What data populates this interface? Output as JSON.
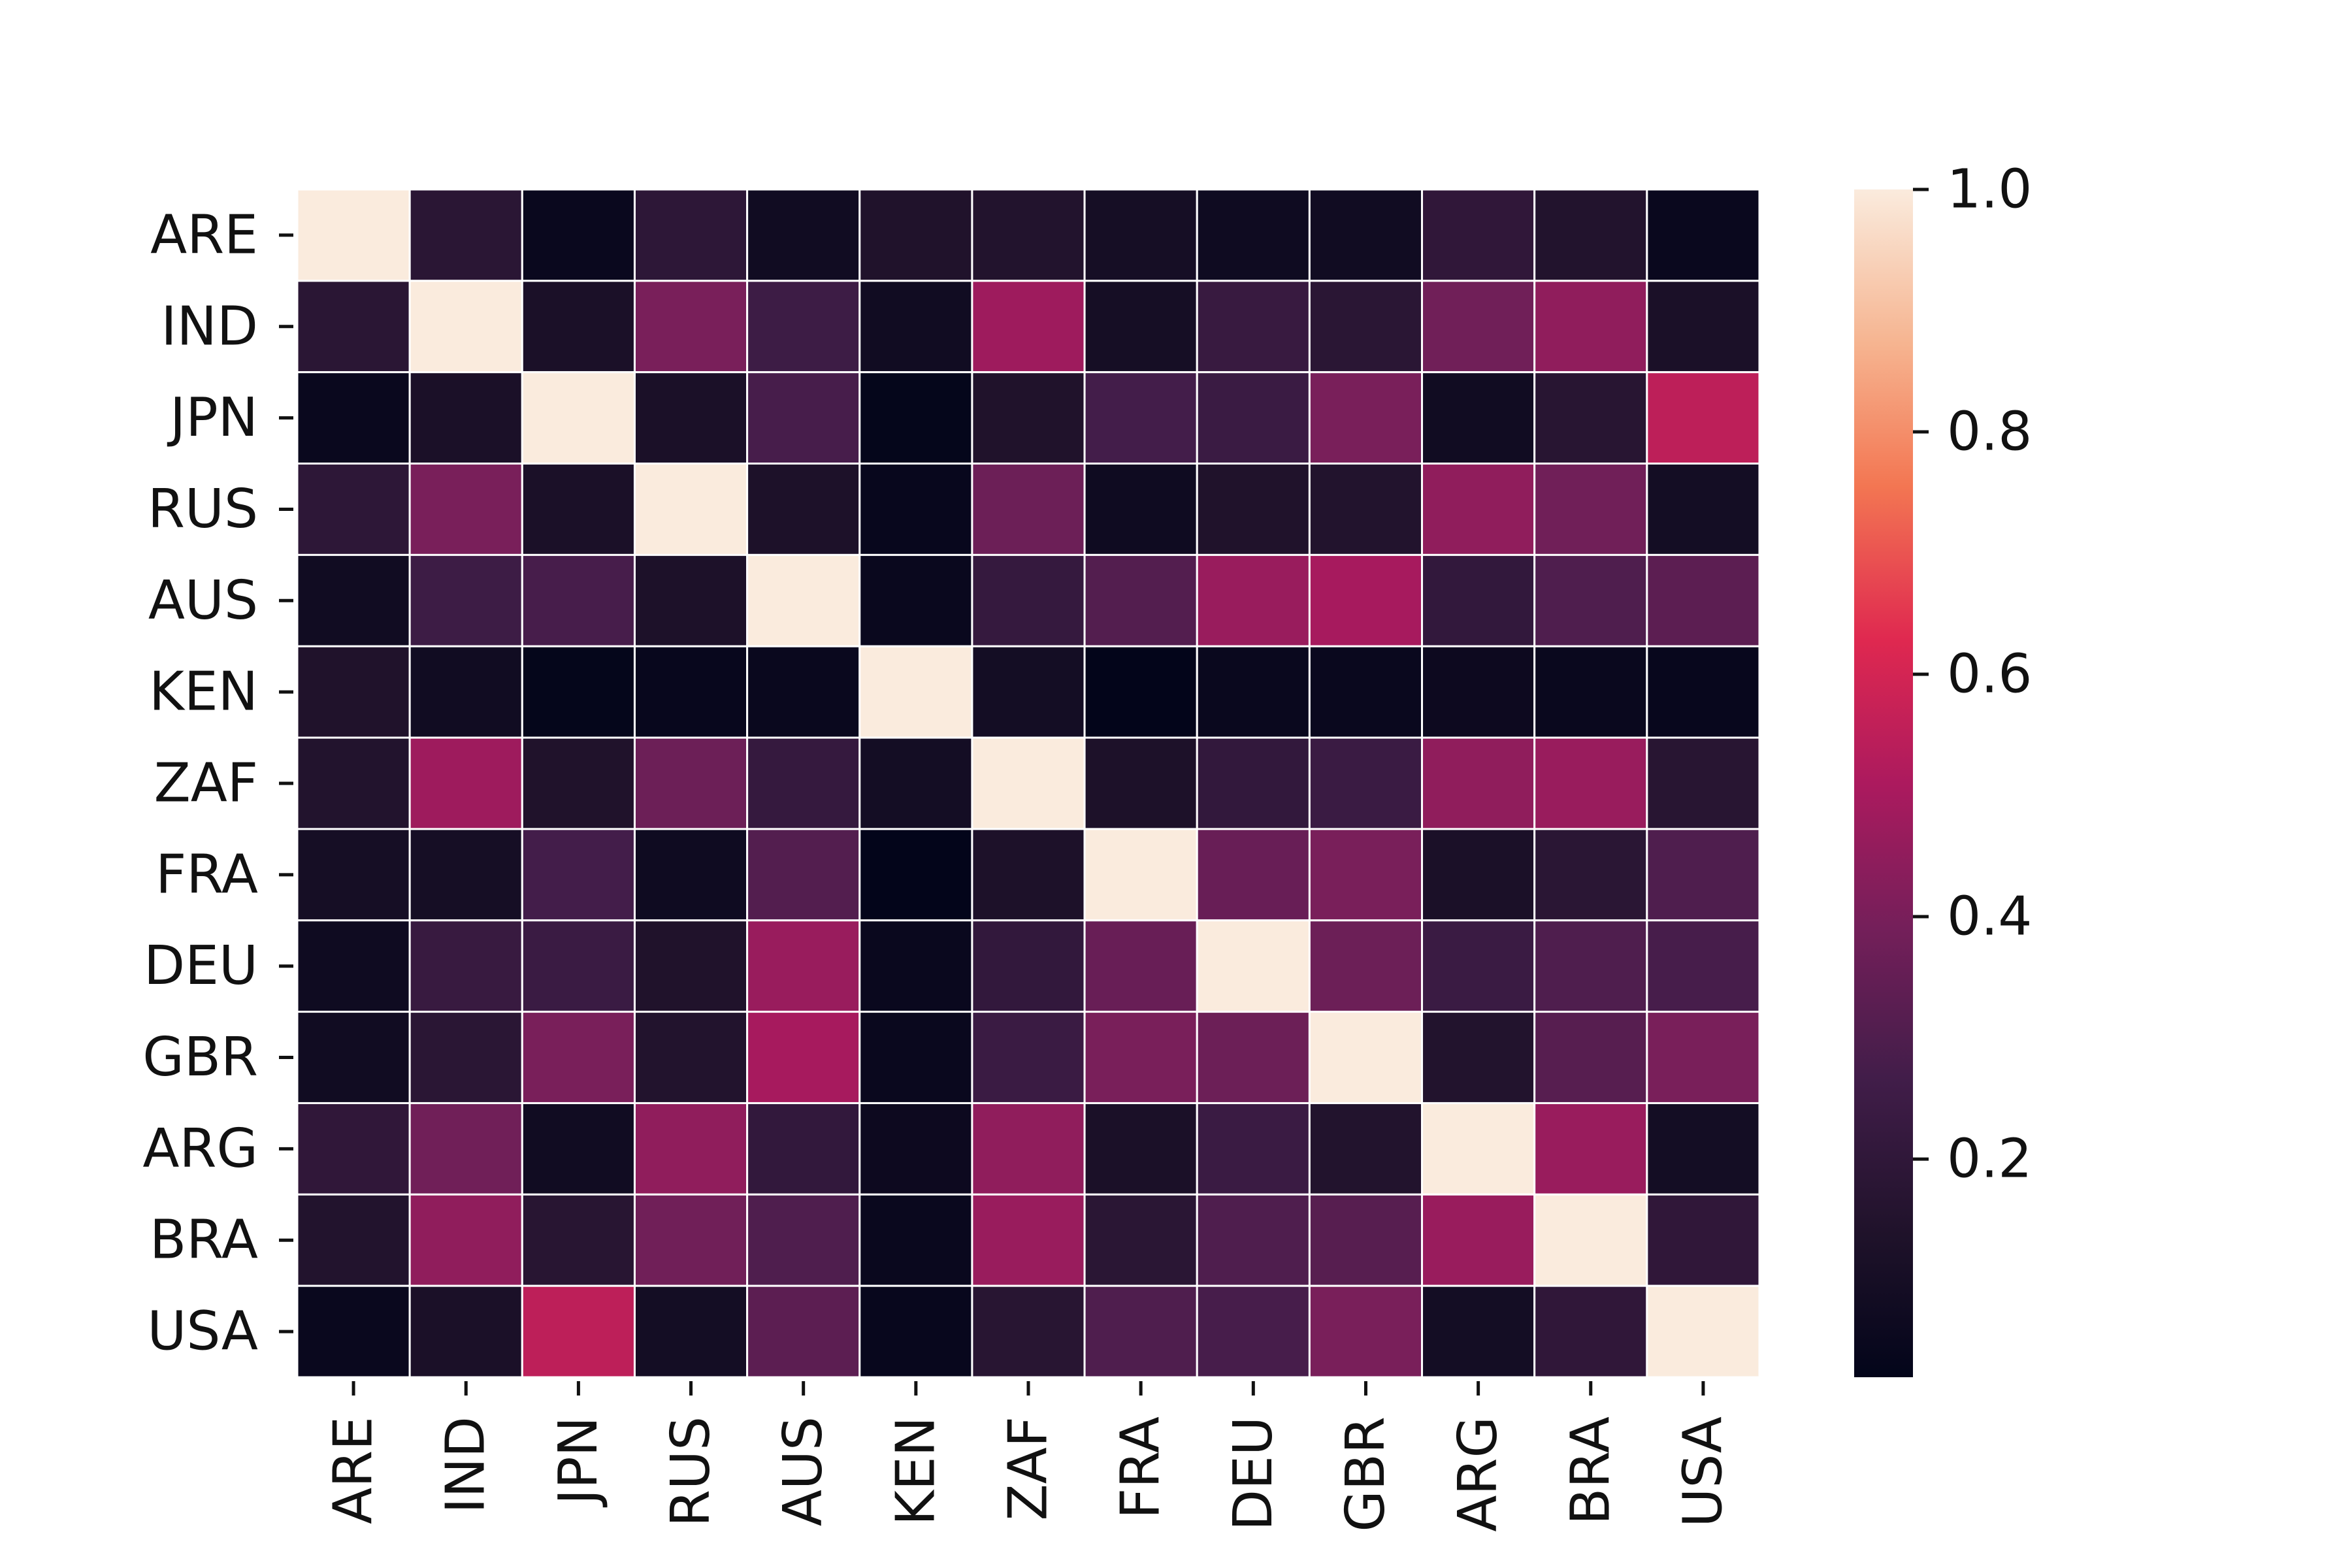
{
  "chart_data": {
    "type": "heatmap",
    "title": "",
    "xlabel": "",
    "ylabel": "",
    "rows": [
      "ARE",
      "IND",
      "JPN",
      "RUS",
      "AUS",
      "KEN",
      "ZAF",
      "FRA",
      "DEU",
      "GBR",
      "ARG",
      "BRA",
      "USA"
    ],
    "columns": [
      "ARE",
      "IND",
      "JPN",
      "RUS",
      "AUS",
      "KEN",
      "ZAF",
      "FRA",
      "DEU",
      "GBR",
      "ARG",
      "BRA",
      "USA"
    ],
    "values": [
      [
        1.0,
        0.18,
        0.05,
        0.19,
        0.08,
        0.14,
        0.15,
        0.1,
        0.07,
        0.08,
        0.2,
        0.15,
        0.05
      ],
      [
        0.18,
        1.0,
        0.12,
        0.4,
        0.25,
        0.08,
        0.48,
        0.1,
        0.23,
        0.18,
        0.38,
        0.45,
        0.12
      ],
      [
        0.05,
        0.12,
        1.0,
        0.12,
        0.28,
        0.03,
        0.14,
        0.27,
        0.24,
        0.4,
        0.08,
        0.17,
        0.55
      ],
      [
        0.19,
        0.4,
        0.12,
        1.0,
        0.13,
        0.04,
        0.37,
        0.07,
        0.14,
        0.15,
        0.45,
        0.38,
        0.09
      ],
      [
        0.08,
        0.25,
        0.28,
        0.13,
        1.0,
        0.05,
        0.22,
        0.31,
        0.47,
        0.5,
        0.21,
        0.3,
        0.33
      ],
      [
        0.14,
        0.08,
        0.03,
        0.04,
        0.05,
        1.0,
        0.09,
        0.02,
        0.05,
        0.05,
        0.06,
        0.05,
        0.04
      ],
      [
        0.15,
        0.48,
        0.14,
        0.37,
        0.22,
        0.09,
        1.0,
        0.13,
        0.21,
        0.24,
        0.45,
        0.47,
        0.17
      ],
      [
        0.1,
        0.1,
        0.27,
        0.07,
        0.31,
        0.02,
        0.13,
        1.0,
        0.36,
        0.4,
        0.12,
        0.18,
        0.3
      ],
      [
        0.07,
        0.23,
        0.24,
        0.14,
        0.47,
        0.05,
        0.21,
        0.36,
        1.0,
        0.37,
        0.24,
        0.3,
        0.28
      ],
      [
        0.08,
        0.18,
        0.4,
        0.15,
        0.5,
        0.05,
        0.24,
        0.4,
        0.37,
        1.0,
        0.15,
        0.32,
        0.4
      ],
      [
        0.2,
        0.38,
        0.08,
        0.45,
        0.21,
        0.06,
        0.45,
        0.12,
        0.24,
        0.15,
        1.0,
        0.47,
        0.09
      ],
      [
        0.15,
        0.45,
        0.17,
        0.38,
        0.3,
        0.05,
        0.47,
        0.18,
        0.3,
        0.32,
        0.47,
        1.0,
        0.2
      ],
      [
        0.05,
        0.12,
        0.55,
        0.09,
        0.33,
        0.04,
        0.17,
        0.3,
        0.28,
        0.4,
        0.09,
        0.2,
        1.0
      ]
    ],
    "colorbar": {
      "range": [
        0.02,
        1.0
      ],
      "ticks": [
        0.2,
        0.4,
        0.6,
        0.8,
        1.0
      ],
      "tick_labels": [
        "0.2",
        "0.4",
        "0.6",
        "0.8",
        "1.0"
      ],
      "colormap": "rocket"
    },
    "grid": "white cell borders",
    "legend": "colorbar right"
  }
}
